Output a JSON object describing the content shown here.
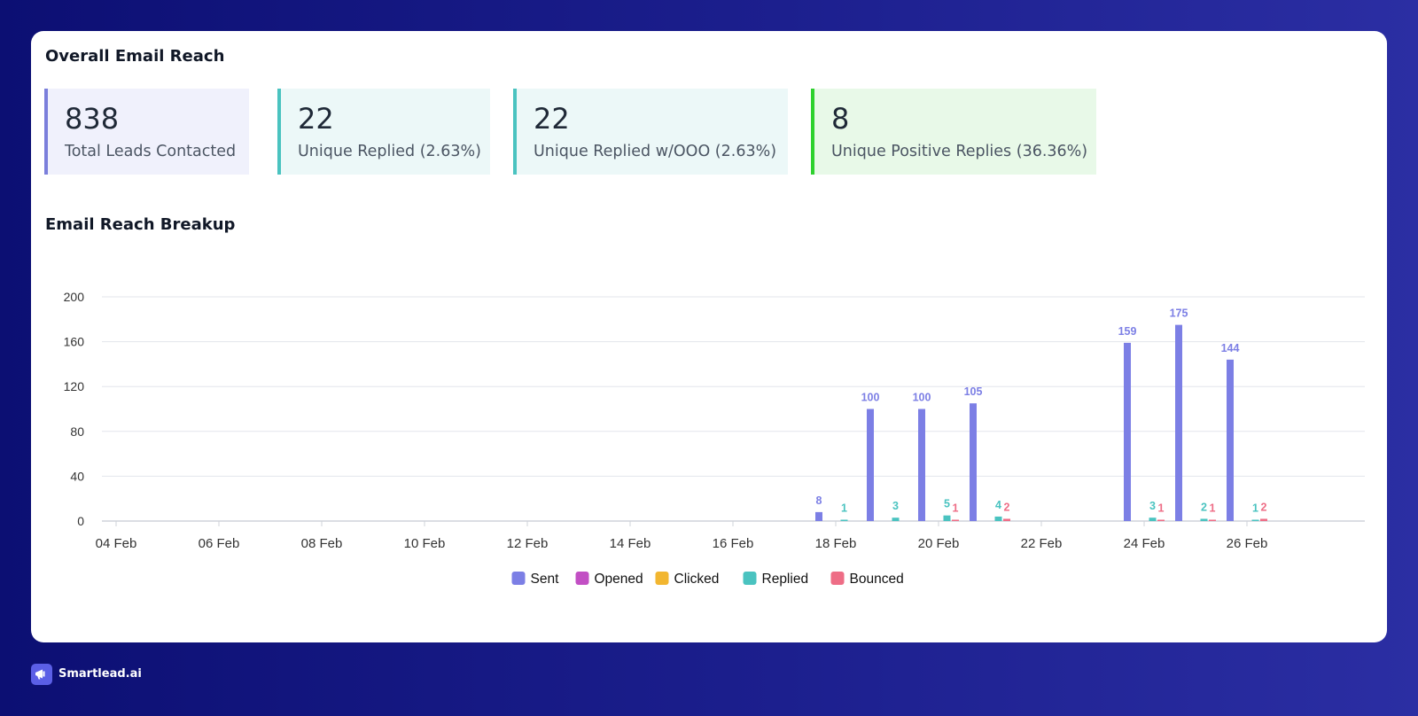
{
  "overview": {
    "title": "Overall Email Reach",
    "stats": [
      {
        "value": "838",
        "label": "Total Leads Contacted",
        "accent": "#7b7fdb",
        "bg": "#f0f1fc"
      },
      {
        "value": "22",
        "label": "Unique Replied (2.63%)",
        "accent": "#4ac3c0",
        "bg": "#ecf8f8"
      },
      {
        "value": "22",
        "label": "Unique Replied w/OOO (2.63%)",
        "accent": "#4ac3c0",
        "bg": "#ecf8f8"
      },
      {
        "value": "8",
        "label": "Unique Positive Replies (36.36%)",
        "accent": "#2ed12e",
        "bg": "#e8f9e8"
      }
    ]
  },
  "breakup": {
    "title": "Email Reach Breakup"
  },
  "chart_data": {
    "type": "bar",
    "x_ticks": [
      "04 Feb",
      "06 Feb",
      "08 Feb",
      "10 Feb",
      "12 Feb",
      "14 Feb",
      "16 Feb",
      "18 Feb",
      "20 Feb",
      "22 Feb",
      "24 Feb",
      "26 Feb"
    ],
    "x_range": [
      "04 Feb",
      "28 Feb"
    ],
    "ylim": [
      0,
      200
    ],
    "y_ticks": [
      0,
      40,
      80,
      120,
      160,
      200
    ],
    "grid": true,
    "legend_position": "bottom",
    "series": [
      {
        "name": "Sent",
        "color": "#7c7fe5",
        "points": [
          {
            "x": "18 Feb",
            "y": 8
          },
          {
            "x": "19 Feb",
            "y": 100
          },
          {
            "x": "20 Feb",
            "y": 100
          },
          {
            "x": "21 Feb",
            "y": 105
          },
          {
            "x": "24 Feb",
            "y": 159
          },
          {
            "x": "25 Feb",
            "y": 175
          },
          {
            "x": "26 Feb",
            "y": 144
          }
        ]
      },
      {
        "name": "Opened",
        "color": "#c24fc4",
        "points": []
      },
      {
        "name": "Clicked",
        "color": "#f2b630",
        "points": []
      },
      {
        "name": "Replied",
        "color": "#4ac3c0",
        "points": [
          {
            "x": "18 Feb",
            "y": 1
          },
          {
            "x": "19 Feb",
            "y": 3
          },
          {
            "x": "20 Feb",
            "y": 5
          },
          {
            "x": "21 Feb",
            "y": 4
          },
          {
            "x": "24 Feb",
            "y": 3
          },
          {
            "x": "25 Feb",
            "y": 2
          },
          {
            "x": "26 Feb",
            "y": 1
          }
        ]
      },
      {
        "name": "Bounced",
        "color": "#ee6d86",
        "points": [
          {
            "x": "20 Feb",
            "y": 1
          },
          {
            "x": "21 Feb",
            "y": 2
          },
          {
            "x": "24 Feb",
            "y": 1
          },
          {
            "x": "25 Feb",
            "y": 1
          },
          {
            "x": "26 Feb",
            "y": 2
          }
        ]
      }
    ]
  },
  "footer": {
    "brand_name": "Smartlead.ai",
    "brand_icon": "megaphone-icon",
    "brand_color": "#5b5fe6"
  }
}
